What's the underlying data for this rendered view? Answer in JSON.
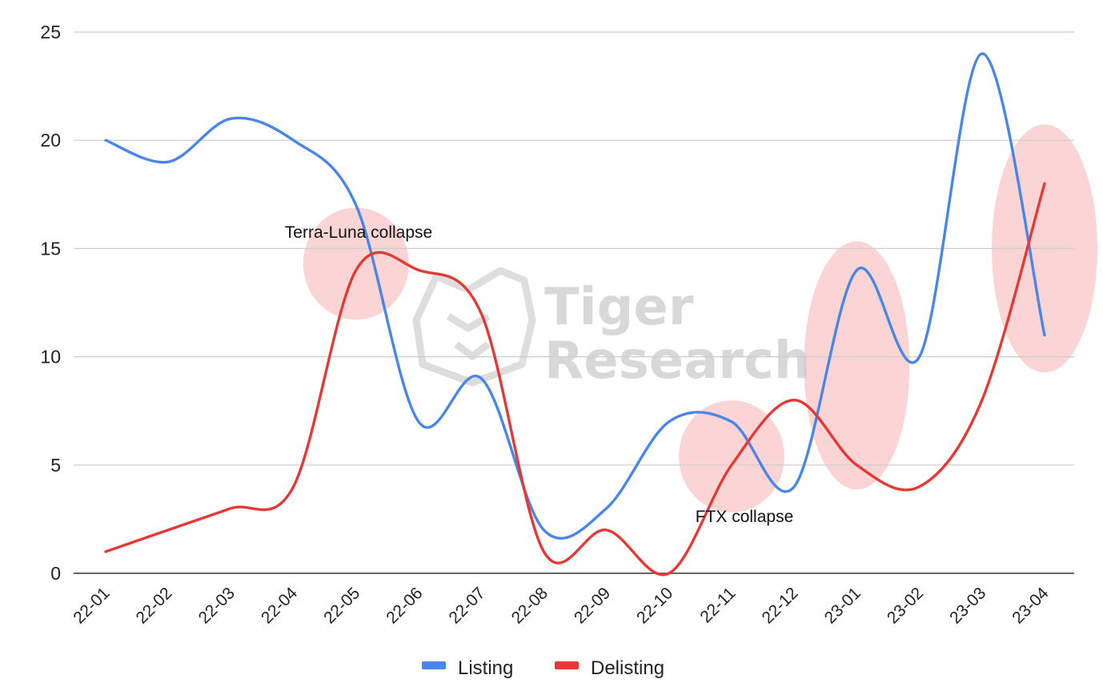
{
  "chart_data": {
    "type": "line",
    "title": "",
    "xlabel": "",
    "ylabel": "",
    "categories": [
      "22-01",
      "22-02",
      "22-03",
      "22-04",
      "22-05",
      "22-06",
      "22-07",
      "22-08",
      "22-09",
      "22-10",
      "22-11",
      "22-12",
      "23-01",
      "23-02",
      "23-03",
      "23-04"
    ],
    "series": [
      {
        "name": "Listing",
        "color": "#4a86e8",
        "values": [
          20,
          19,
          21,
          20,
          17,
          7,
          9,
          2,
          3,
          7,
          7,
          4,
          14,
          10,
          24,
          11
        ]
      },
      {
        "name": "Delisting",
        "color": "#e53935",
        "values": [
          1,
          2,
          3,
          4,
          14,
          14,
          12,
          1,
          2,
          0,
          5,
          8,
          5,
          4,
          8,
          18
        ]
      }
    ],
    "ylim": [
      0,
      25
    ],
    "yticks": [
      0,
      5,
      10,
      15,
      20,
      25
    ],
    "grid": true,
    "legend_position": "bottom",
    "annotations": [
      {
        "text": "Terra-Luna collapse",
        "category": "22-05"
      },
      {
        "text": "FTX collapse",
        "category": "22-11"
      }
    ],
    "highlights": [
      {
        "category": "22-05",
        "y": 14.3
      },
      {
        "category": "22-11",
        "y": 5.4
      },
      {
        "category": "23-01",
        "y": 9.6
      },
      {
        "category": "23-04",
        "y": 15
      }
    ],
    "watermark": {
      "line1": "Tiger",
      "line2": "Research"
    }
  }
}
